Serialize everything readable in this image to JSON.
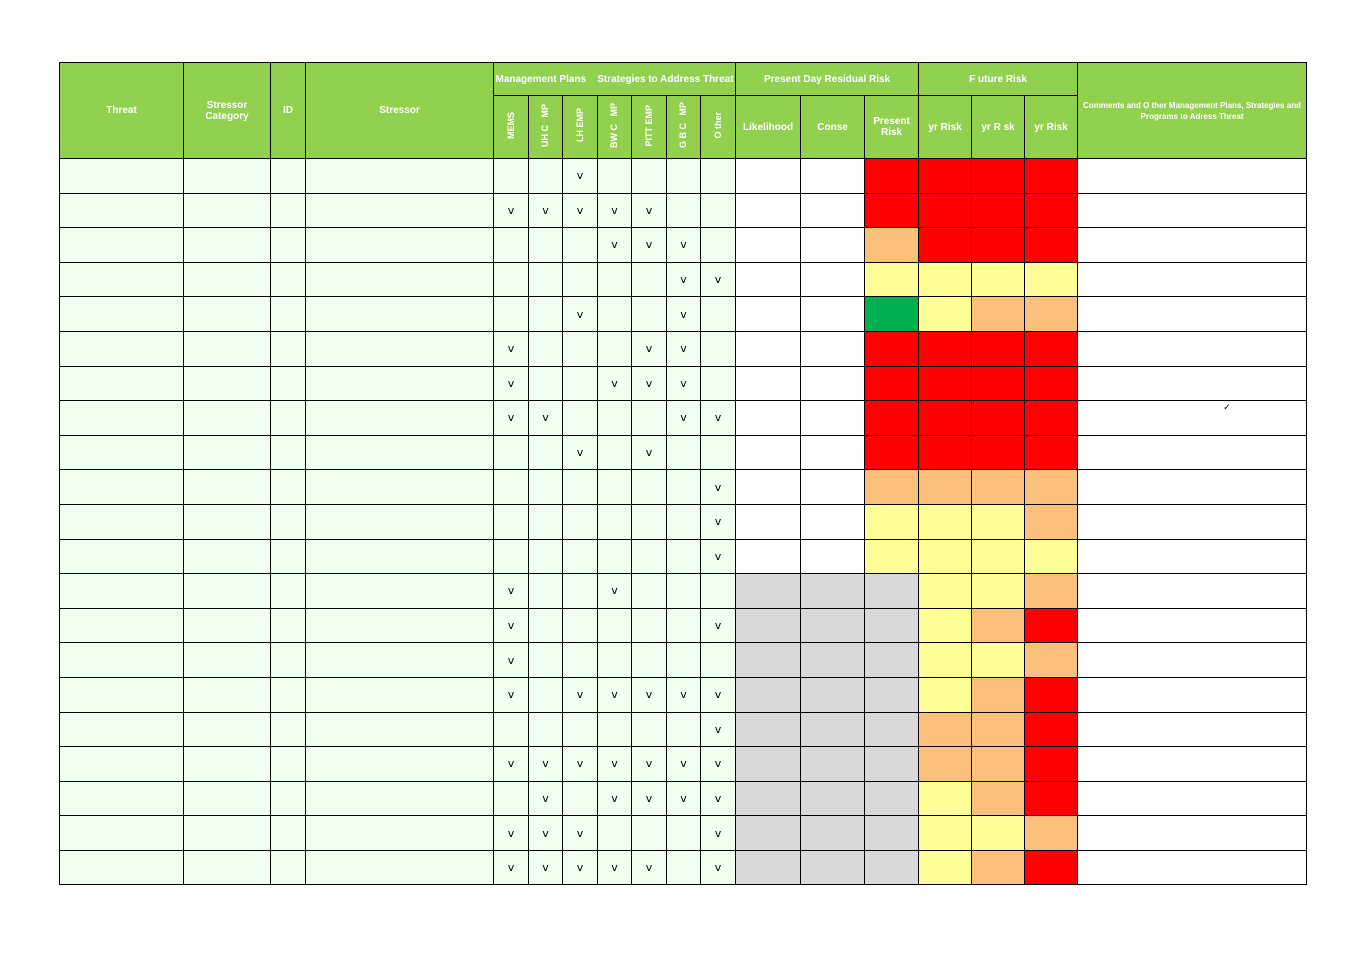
{
  "headers": {
    "threat": "Threat",
    "stressor_category": "Stressor Category",
    "id": "ID",
    "stressor": "Stressor",
    "management_group": "Management Plans    Strategies to Address Threat",
    "plans": [
      "MEMS",
      "UH C   MP",
      "LH EMP",
      "BW C   MP",
      "PITT EMP",
      "G B C   MP",
      "O ther"
    ],
    "present_group": "Present Day Residual Risk",
    "likelihood": "Likelihood",
    "conse": "Conse",
    "present_risk": "Present Risk",
    "future_group": "F uture Risk",
    "future_cols": [
      "yr Risk",
      "yr R sk",
      "yr Risk"
    ],
    "comments": "Comments and O ther Management Plans, Strategies and Programs to Adress Threat"
  },
  "check_symbol": "v",
  "colors": {
    "header_green": "#92d050",
    "light_green": "#f0fff0",
    "red": "#ff0000",
    "orange": "#fac07c",
    "yellow": "#ffff99",
    "green": "#00b050",
    "grey": "#d9d9d9"
  },
  "rows": [
    {
      "checks": [
        "",
        "",
        "v",
        "",
        "",
        "",
        ""
      ],
      "likelihood": "white",
      "conse": "white",
      "risks": [
        "red",
        "red",
        "red",
        "red"
      ],
      "comment": ""
    },
    {
      "checks": [
        "v",
        "v",
        "v",
        "v",
        "v",
        "",
        ""
      ],
      "likelihood": "white",
      "conse": "white",
      "risks": [
        "red",
        "red",
        "red",
        "red"
      ],
      "comment": ""
    },
    {
      "checks": [
        "",
        "",
        "",
        "v",
        "v",
        "v",
        ""
      ],
      "likelihood": "white",
      "conse": "white",
      "risks": [
        "orange",
        "red",
        "red",
        "red"
      ],
      "comment": ""
    },
    {
      "checks": [
        "",
        "",
        "",
        "",
        "",
        "v",
        "v"
      ],
      "likelihood": "white",
      "conse": "white",
      "risks": [
        "yellow",
        "yellow",
        "yellow",
        "yellow"
      ],
      "comment": ""
    },
    {
      "checks": [
        "",
        "",
        "v",
        "",
        "",
        "v",
        ""
      ],
      "likelihood": "white",
      "conse": "white",
      "risks": [
        "green",
        "yellow",
        "orange",
        "orange"
      ],
      "comment": ""
    },
    {
      "checks": [
        "v",
        "",
        "",
        "",
        "v",
        "v",
        ""
      ],
      "likelihood": "white",
      "conse": "white",
      "risks": [
        "red",
        "red",
        "red",
        "red"
      ],
      "comment": ""
    },
    {
      "checks": [
        "v",
        "",
        "",
        "v",
        "v",
        "v",
        ""
      ],
      "likelihood": "white",
      "conse": "white",
      "risks": [
        "red",
        "red",
        "red",
        "red"
      ],
      "comment": ""
    },
    {
      "checks": [
        "v",
        "v",
        "",
        "",
        "",
        "v",
        "v"
      ],
      "likelihood": "white",
      "conse": "white",
      "risks": [
        "red",
        "red",
        "red",
        "red"
      ],
      "comment": "✓"
    },
    {
      "checks": [
        "",
        "",
        "v",
        "",
        "v",
        "",
        ""
      ],
      "likelihood": "white",
      "conse": "white",
      "risks": [
        "red",
        "red",
        "red",
        "red"
      ],
      "comment": ""
    },
    {
      "checks": [
        "",
        "",
        "",
        "",
        "",
        "",
        "v"
      ],
      "likelihood": "white",
      "conse": "white",
      "risks": [
        "orange",
        "orange",
        "orange",
        "orange"
      ],
      "comment": ""
    },
    {
      "checks": [
        "",
        "",
        "",
        "",
        "",
        "",
        "v"
      ],
      "likelihood": "white",
      "conse": "white",
      "risks": [
        "yellow",
        "yellow",
        "yellow",
        "orange"
      ],
      "comment": ""
    },
    {
      "checks": [
        "",
        "",
        "",
        "",
        "",
        "",
        "v"
      ],
      "likelihood": "white",
      "conse": "white",
      "risks": [
        "yellow",
        "yellow",
        "yellow",
        "yellow"
      ],
      "comment": ""
    },
    {
      "checks": [
        "v",
        "",
        "",
        "v",
        "",
        "",
        ""
      ],
      "likelihood": "grey",
      "conse": "grey",
      "risks": [
        "grey",
        "yellow",
        "yellow",
        "orange"
      ],
      "comment": ""
    },
    {
      "checks": [
        "v",
        "",
        "",
        "",
        "",
        "",
        "v"
      ],
      "likelihood": "grey",
      "conse": "grey",
      "risks": [
        "grey",
        "yellow",
        "orange",
        "red"
      ],
      "comment": ""
    },
    {
      "checks": [
        "v",
        "",
        "",
        "",
        "",
        "",
        ""
      ],
      "likelihood": "grey",
      "conse": "grey",
      "risks": [
        "grey",
        "yellow",
        "yellow",
        "orange"
      ],
      "comment": ""
    },
    {
      "checks": [
        "v",
        "",
        "v",
        "v",
        "v",
        "v",
        "v"
      ],
      "likelihood": "grey",
      "conse": "grey",
      "risks": [
        "grey",
        "yellow",
        "orange",
        "red"
      ],
      "comment": ""
    },
    {
      "checks": [
        "",
        "",
        "",
        "",
        "",
        "",
        "v"
      ],
      "likelihood": "grey",
      "conse": "grey",
      "risks": [
        "grey",
        "orange",
        "orange",
        "red"
      ],
      "comment": ""
    },
    {
      "checks": [
        "v",
        "v",
        "v",
        "v",
        "v",
        "v",
        "v"
      ],
      "likelihood": "grey",
      "conse": "grey",
      "risks": [
        "grey",
        "orange",
        "orange",
        "red"
      ],
      "comment": ""
    },
    {
      "checks": [
        "",
        "v",
        "",
        "v",
        "v",
        "v",
        "v"
      ],
      "likelihood": "grey",
      "conse": "grey",
      "risks": [
        "grey",
        "yellow",
        "orange",
        "red"
      ],
      "comment": ""
    },
    {
      "checks": [
        "v",
        "v",
        "v",
        "",
        "",
        "",
        "v"
      ],
      "likelihood": "grey",
      "conse": "grey",
      "risks": [
        "grey",
        "yellow",
        "yellow",
        "orange"
      ],
      "comment": ""
    },
    {
      "checks": [
        "v",
        "v",
        "v",
        "v",
        "v",
        "",
        "v"
      ],
      "likelihood": "grey",
      "conse": "grey",
      "risks": [
        "grey",
        "yellow",
        "orange",
        "red"
      ],
      "comment": ""
    }
  ]
}
